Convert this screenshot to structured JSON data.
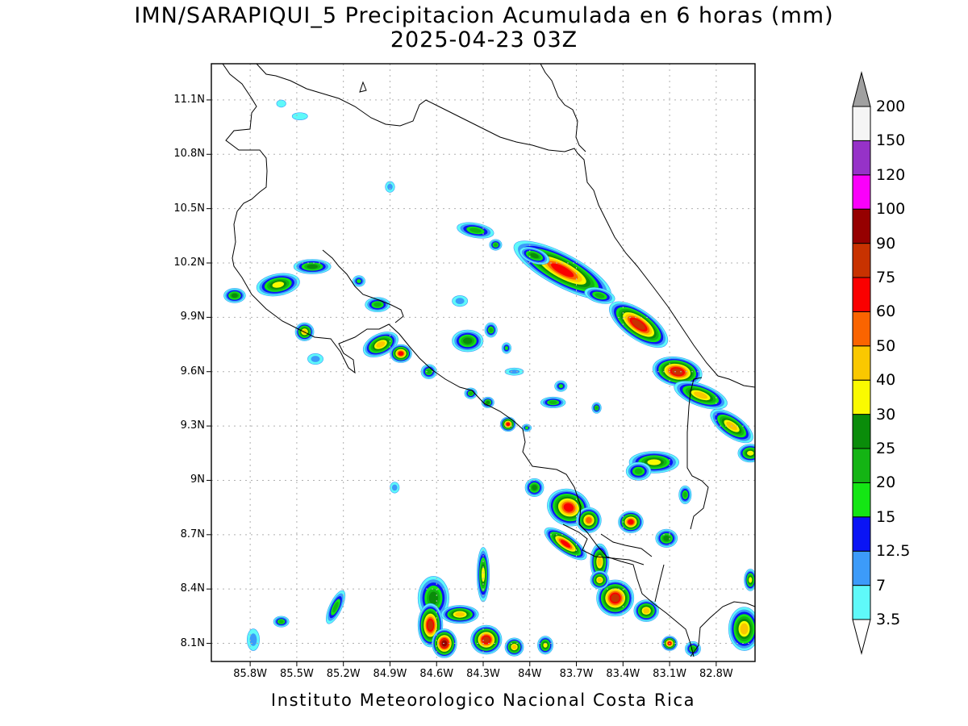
{
  "title": {
    "line1": "IMN/SARAPIQUI_5 Precipitacion Acumulada en 6 horas (mm)",
    "line2": "2025-04-23 03Z"
  },
  "footer": "Instituto Meteorologico Nacional Costa Rica",
  "map": {
    "lon_range": [
      -86.05,
      -82.55
    ],
    "lat_range": [
      8.0,
      11.3
    ],
    "lat_ticks": [
      {
        "v": 11.1,
        "label": "11.1N"
      },
      {
        "v": 10.8,
        "label": "10.8N"
      },
      {
        "v": 10.5,
        "label": "10.5N"
      },
      {
        "v": 10.2,
        "label": "10.2N"
      },
      {
        "v": 9.9,
        "label": "9.9N"
      },
      {
        "v": 9.6,
        "label": "9.6N"
      },
      {
        "v": 9.3,
        "label": "9.3N"
      },
      {
        "v": 9.0,
        "label": "9N"
      },
      {
        "v": 8.7,
        "label": "8.7N"
      },
      {
        "v": 8.4,
        "label": "8.4N"
      },
      {
        "v": 8.1,
        "label": "8.1N"
      }
    ],
    "lon_ticks": [
      {
        "v": -85.8,
        "label": "85.8W"
      },
      {
        "v": -85.5,
        "label": "85.5W"
      },
      {
        "v": -85.2,
        "label": "85.2W"
      },
      {
        "v": -84.9,
        "label": "84.9W"
      },
      {
        "v": -84.6,
        "label": "84.6W"
      },
      {
        "v": -84.3,
        "label": "84.3W"
      },
      {
        "v": -84.0,
        "label": "84W"
      },
      {
        "v": -83.7,
        "label": "83.7W"
      },
      {
        "v": -83.4,
        "label": "83.4W"
      },
      {
        "v": -83.1,
        "label": "83.1W"
      },
      {
        "v": -82.8,
        "label": "82.8W"
      }
    ],
    "grid": true,
    "coastline_color": "#000000"
  },
  "colorbar": {
    "labels": [
      "200",
      "150",
      "120",
      "100",
      "90",
      "75",
      "60",
      "50",
      "40",
      "30",
      "25",
      "20",
      "15",
      "12.5",
      "7",
      "3.5"
    ],
    "colors": [
      "#5ff9f9",
      "#3c9bf9",
      "#0a14f5",
      "#14e614",
      "#14b414",
      "#0a8c0a",
      "#fafa00",
      "#fac800",
      "#fa6400",
      "#fa0000",
      "#c83200",
      "#960000",
      "#fa00fa",
      "#9632c8",
      "#f5f5f5"
    ],
    "upper_arrow_color": "#a0a0a0",
    "lower_arrow_color": "#ffffff"
  },
  "precip_cells": [
    {
      "lon": -85.9,
      "lat": 10.02,
      "mm": 25,
      "a": 0.07,
      "b": 0.04,
      "r": 0
    },
    {
      "lon": -85.62,
      "lat": 10.08,
      "mm": 30,
      "a": 0.14,
      "b": 0.06,
      "r": -10
    },
    {
      "lon": -85.4,
      "lat": 10.18,
      "mm": 25,
      "a": 0.12,
      "b": 0.04,
      "r": 0
    },
    {
      "lon": -85.1,
      "lat": 10.1,
      "mm": 15,
      "a": 0.04,
      "b": 0.03,
      "r": 0
    },
    {
      "lon": -84.98,
      "lat": 9.97,
      "mm": 20,
      "a": 0.08,
      "b": 0.04,
      "r": 0
    },
    {
      "lon": -85.45,
      "lat": 9.82,
      "mm": 40,
      "a": 0.06,
      "b": 0.05,
      "r": 0
    },
    {
      "lon": -85.38,
      "lat": 9.67,
      "mm": 12,
      "a": 0.05,
      "b": 0.03,
      "r": 0
    },
    {
      "lon": -84.96,
      "lat": 9.75,
      "mm": 40,
      "a": 0.12,
      "b": 0.06,
      "r": -25
    },
    {
      "lon": -84.83,
      "lat": 9.7,
      "mm": 60,
      "a": 0.07,
      "b": 0.05,
      "r": 0
    },
    {
      "lon": -84.65,
      "lat": 9.6,
      "mm": 20,
      "a": 0.05,
      "b": 0.04,
      "r": 0
    },
    {
      "lon": -84.35,
      "lat": 10.38,
      "mm": 20,
      "a": 0.12,
      "b": 0.04,
      "r": 10
    },
    {
      "lon": -84.22,
      "lat": 10.3,
      "mm": 20,
      "a": 0.04,
      "b": 0.03,
      "r": 0
    },
    {
      "lon": -84.45,
      "lat": 9.99,
      "mm": 12,
      "a": 0.05,
      "b": 0.03,
      "r": 0
    },
    {
      "lon": -84.4,
      "lat": 9.77,
      "mm": 25,
      "a": 0.1,
      "b": 0.06,
      "r": 0
    },
    {
      "lon": -84.25,
      "lat": 9.83,
      "mm": 20,
      "a": 0.04,
      "b": 0.04,
      "r": 0
    },
    {
      "lon": -84.15,
      "lat": 9.73,
      "mm": 15,
      "a": 0.03,
      "b": 0.03,
      "r": 0
    },
    {
      "lon": -84.38,
      "lat": 9.48,
      "mm": 20,
      "a": 0.04,
      "b": 0.03,
      "r": 0
    },
    {
      "lon": -84.27,
      "lat": 9.43,
      "mm": 25,
      "a": 0.04,
      "b": 0.03,
      "r": 0
    },
    {
      "lon": -84.1,
      "lat": 9.6,
      "mm": 12,
      "a": 0.06,
      "b": 0.02,
      "r": 0
    },
    {
      "lon": -84.14,
      "lat": 9.31,
      "mm": 60,
      "a": 0.05,
      "b": 0.04,
      "r": 0
    },
    {
      "lon": -84.02,
      "lat": 9.29,
      "mm": 15,
      "a": 0.03,
      "b": 0.02,
      "r": 0
    },
    {
      "lon": -83.85,
      "lat": 9.43,
      "mm": 20,
      "a": 0.08,
      "b": 0.03,
      "r": 0
    },
    {
      "lon": -83.8,
      "lat": 9.52,
      "mm": 15,
      "a": 0.04,
      "b": 0.03,
      "r": 0
    },
    {
      "lon": -83.57,
      "lat": 9.4,
      "mm": 20,
      "a": 0.03,
      "b": 0.03,
      "r": 0
    },
    {
      "lon": -83.79,
      "lat": 10.16,
      "mm": 60,
      "a": 0.35,
      "b": 0.09,
      "r": 28
    },
    {
      "lon": -83.97,
      "lat": 10.24,
      "mm": 25,
      "a": 0.1,
      "b": 0.04,
      "r": 20
    },
    {
      "lon": -83.55,
      "lat": 10.02,
      "mm": 20,
      "a": 0.1,
      "b": 0.04,
      "r": 15
    },
    {
      "lon": -83.3,
      "lat": 9.86,
      "mm": 75,
      "a": 0.22,
      "b": 0.08,
      "r": 35
    },
    {
      "lon": -83.05,
      "lat": 9.6,
      "mm": 75,
      "a": 0.16,
      "b": 0.08,
      "r": 10
    },
    {
      "lon": -82.9,
      "lat": 9.47,
      "mm": 40,
      "a": 0.18,
      "b": 0.06,
      "r": 20
    },
    {
      "lon": -82.7,
      "lat": 9.3,
      "mm": 40,
      "a": 0.16,
      "b": 0.06,
      "r": 35
    },
    {
      "lon": -82.58,
      "lat": 9.15,
      "mm": 30,
      "a": 0.08,
      "b": 0.05,
      "r": 0
    },
    {
      "lon": -83.2,
      "lat": 9.1,
      "mm": 30,
      "a": 0.16,
      "b": 0.06,
      "r": 0
    },
    {
      "lon": -83.3,
      "lat": 9.05,
      "mm": 20,
      "a": 0.08,
      "b": 0.05,
      "r": 0
    },
    {
      "lon": -83.0,
      "lat": 8.92,
      "mm": 20,
      "a": 0.04,
      "b": 0.05,
      "r": 0
    },
    {
      "lon": -83.75,
      "lat": 8.85,
      "mm": 60,
      "a": 0.14,
      "b": 0.1,
      "r": 20
    },
    {
      "lon": -83.62,
      "lat": 8.78,
      "mm": 50,
      "a": 0.08,
      "b": 0.07,
      "r": 0
    },
    {
      "lon": -83.97,
      "lat": 8.96,
      "mm": 25,
      "a": 0.06,
      "b": 0.05,
      "r": 0
    },
    {
      "lon": -83.77,
      "lat": 8.65,
      "mm": 60,
      "a": 0.16,
      "b": 0.05,
      "r": 35
    },
    {
      "lon": -83.55,
      "lat": 8.55,
      "mm": 40,
      "a": 0.06,
      "b": 0.1,
      "r": 0
    },
    {
      "lon": -83.35,
      "lat": 8.77,
      "mm": 60,
      "a": 0.08,
      "b": 0.06,
      "r": 0
    },
    {
      "lon": -83.12,
      "lat": 8.68,
      "mm": 25,
      "a": 0.07,
      "b": 0.05,
      "r": 0
    },
    {
      "lon": -83.45,
      "lat": 8.35,
      "mm": 75,
      "a": 0.12,
      "b": 0.1,
      "r": 0
    },
    {
      "lon": -83.25,
      "lat": 8.28,
      "mm": 40,
      "a": 0.08,
      "b": 0.06,
      "r": 0
    },
    {
      "lon": -83.55,
      "lat": 8.45,
      "mm": 40,
      "a": 0.06,
      "b": 0.05,
      "r": 0
    },
    {
      "lon": -83.1,
      "lat": 8.1,
      "mm": 60,
      "a": 0.05,
      "b": 0.04,
      "r": 0
    },
    {
      "lon": -82.95,
      "lat": 8.07,
      "mm": 20,
      "a": 0.05,
      "b": 0.04,
      "r": 0
    },
    {
      "lon": -82.62,
      "lat": 8.18,
      "mm": 40,
      "a": 0.1,
      "b": 0.12,
      "r": 0
    },
    {
      "lon": -82.58,
      "lat": 8.45,
      "mm": 30,
      "a": 0.04,
      "b": 0.06,
      "r": 0
    },
    {
      "lon": -84.62,
      "lat": 8.35,
      "mm": 25,
      "a": 0.1,
      "b": 0.12,
      "r": 0
    },
    {
      "lon": -84.64,
      "lat": 8.2,
      "mm": 75,
      "a": 0.08,
      "b": 0.12,
      "r": 0
    },
    {
      "lon": -84.55,
      "lat": 8.1,
      "mm": 90,
      "a": 0.08,
      "b": 0.08,
      "r": 0
    },
    {
      "lon": -84.28,
      "lat": 8.12,
      "mm": 75,
      "a": 0.1,
      "b": 0.08,
      "r": 0
    },
    {
      "lon": -84.45,
      "lat": 8.26,
      "mm": 40,
      "a": 0.12,
      "b": 0.05,
      "r": 0
    },
    {
      "lon": -84.3,
      "lat": 8.48,
      "mm": 30,
      "a": 0.04,
      "b": 0.15,
      "r": 0
    },
    {
      "lon": -84.1,
      "lat": 8.08,
      "mm": 40,
      "a": 0.06,
      "b": 0.05,
      "r": 0
    },
    {
      "lon": -83.9,
      "lat": 8.09,
      "mm": 30,
      "a": 0.05,
      "b": 0.05,
      "r": 0
    },
    {
      "lon": -85.6,
      "lat": 8.22,
      "mm": 20,
      "a": 0.05,
      "b": 0.03,
      "r": 0
    },
    {
      "lon": -85.78,
      "lat": 8.12,
      "mm": 12,
      "a": 0.04,
      "b": 0.06,
      "r": 0
    },
    {
      "lon": -85.25,
      "lat": 8.3,
      "mm": 20,
      "a": 0.04,
      "b": 0.1,
      "r": 25
    },
    {
      "lon": -84.87,
      "lat": 8.96,
      "mm": 7,
      "a": 0.03,
      "b": 0.03,
      "r": 0
    },
    {
      "lon": -84.9,
      "lat": 10.62,
      "mm": 7,
      "a": 0.03,
      "b": 0.03,
      "r": 0
    },
    {
      "lon": -85.48,
      "lat": 11.01,
      "mm": 3.5,
      "a": 0.05,
      "b": 0.02,
      "r": 0
    },
    {
      "lon": -85.6,
      "lat": 11.08,
      "mm": 3.5,
      "a": 0.03,
      "b": 0.02,
      "r": 0
    }
  ]
}
